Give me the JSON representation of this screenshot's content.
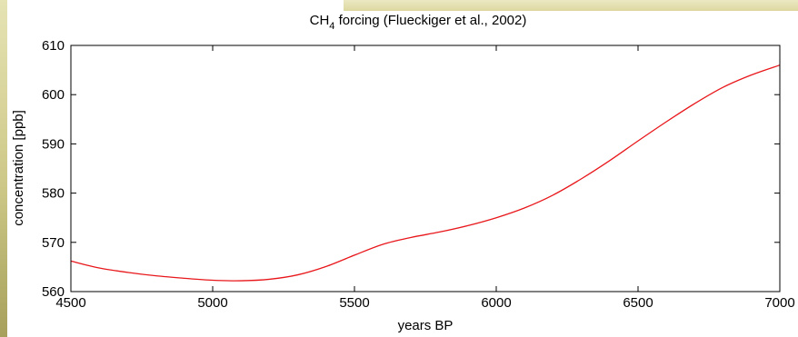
{
  "chart_data": {
    "type": "line",
    "title_prefix": "CH",
    "title_subscript": "4",
    "title_suffix": " forcing (Flueckiger et al., 2002)",
    "xlabel": "years BP",
    "ylabel": "concentration [ppb]",
    "xlim": [
      4500,
      7000
    ],
    "ylim": [
      560,
      610
    ],
    "x_ticks": [
      "4500",
      "5000",
      "5500",
      "6000",
      "6500",
      "7000"
    ],
    "y_ticks": [
      "560",
      "570",
      "580",
      "590",
      "600",
      "610"
    ],
    "grid": false,
    "series": [
      {
        "color": "#e8171b",
        "x": [
          4500,
          4600,
          4700,
          4800,
          4900,
          5000,
          5100,
          5200,
          5300,
          5400,
          5500,
          5600,
          5700,
          5800,
          5900,
          6000,
          6100,
          6200,
          6300,
          6400,
          6500,
          6600,
          6700,
          6800,
          6900,
          7000
        ],
        "y": [
          566.2,
          564.8,
          563.9,
          563.2,
          562.7,
          562.3,
          562.2,
          562.5,
          563.4,
          565.1,
          567.4,
          569.6,
          571.0,
          572.1,
          573.4,
          575.0,
          577.0,
          579.6,
          582.9,
          586.6,
          590.6,
          594.5,
          598.2,
          601.5,
          604.0,
          606.0
        ]
      }
    ]
  }
}
